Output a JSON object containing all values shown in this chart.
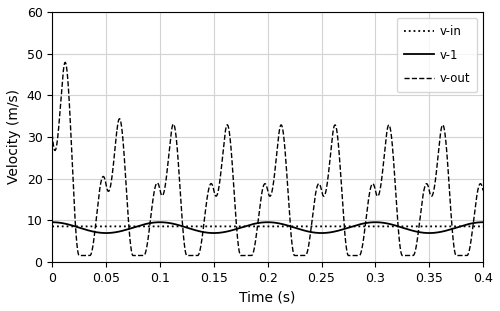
{
  "xlabel": "Time (s)",
  "ylabel": "Velocity (m/s)",
  "xlim": [
    0,
    0.4
  ],
  "ylim": [
    0,
    60
  ],
  "yticks": [
    0,
    10,
    20,
    30,
    40,
    50,
    60
  ],
  "xticks": [
    0,
    0.05,
    0.1,
    0.15,
    0.2,
    0.25,
    0.3,
    0.35,
    0.4
  ],
  "v_in_value": 8.5,
  "v1_mean": 8.2,
  "v1_amplitude": 1.3,
  "v1_frequency": 10.0,
  "v1_phase": 1.57,
  "v_out_base": 1.5,
  "v_out_freq": 20.0,
  "v_out_first_peak": 52.0,
  "v_out_steady_peak": 33.0,
  "legend_labels": [
    "v-in",
    "v-1",
    "v-out"
  ],
  "line_color": "black",
  "figsize": [
    5.0,
    3.11
  ],
  "dpi": 100
}
